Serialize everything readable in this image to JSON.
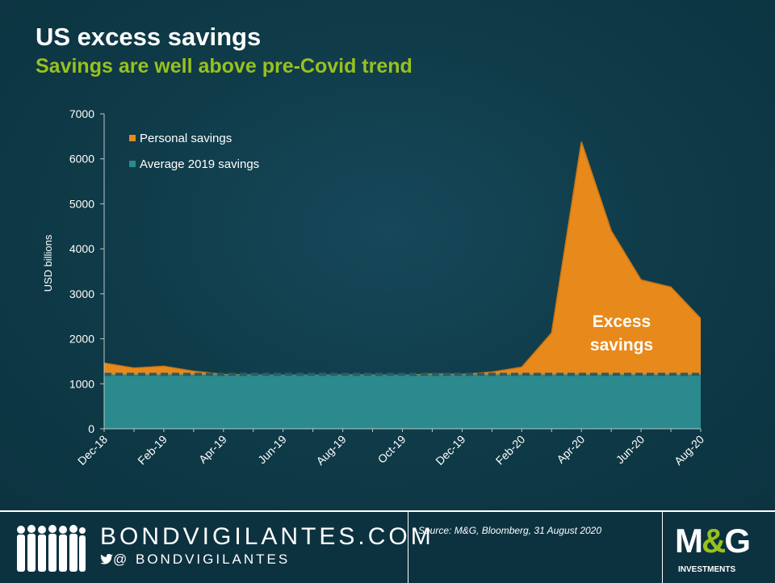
{
  "header": {
    "title": "US excess savings",
    "subtitle": "Savings are well above pre-Covid trend"
  },
  "footer": {
    "site": "BONDVIGILANTES.COM",
    "twitter": "@ BONDVIGILANTES",
    "source": "Source: M&G, Bloomberg, 31 August 2020",
    "logo_main_left": "M",
    "logo_amp": "&",
    "logo_main_right": "G",
    "logo_sub": "INVESTMENTS"
  },
  "colors": {
    "personal": "#e8891c",
    "average": "#2a8a8e",
    "average_line": "#2a5d66",
    "subtitle": "#98c11e"
  },
  "chart_data": {
    "type": "area",
    "ylabel": "USD billions",
    "ylim": [
      0,
      7000
    ],
    "yticks": [
      0,
      1000,
      2000,
      3000,
      4000,
      5000,
      6000,
      7000
    ],
    "x": [
      "Dec-18",
      "Jan-19",
      "Feb-19",
      "Mar-19",
      "Apr-19",
      "May-19",
      "Jun-19",
      "Jul-19",
      "Aug-19",
      "Sep-19",
      "Oct-19",
      "Nov-19",
      "Dec-19",
      "Jan-20",
      "Feb-20",
      "Mar-20",
      "Apr-20",
      "May-20",
      "Jun-20",
      "Jul-20",
      "Aug-20"
    ],
    "xtick_labels": [
      "Dec-18",
      "Feb-19",
      "Apr-19",
      "Jun-19",
      "Aug-19",
      "Oct-19",
      "Dec-19",
      "Feb-20",
      "Apr-20",
      "Jun-20",
      "Aug-20"
    ],
    "series": [
      {
        "name": "Personal savings",
        "values": [
          1460,
          1350,
          1390,
          1280,
          1210,
          1200,
          1190,
          1190,
          1200,
          1200,
          1190,
          1220,
          1210,
          1260,
          1370,
          2130,
          6380,
          4400,
          3310,
          3150,
          2450
        ]
      },
      {
        "name": "Average 2019 savings",
        "values": [
          1210,
          1210,
          1210,
          1210,
          1210,
          1210,
          1210,
          1210,
          1210,
          1210,
          1210,
          1210,
          1210,
          1210,
          1210,
          1210,
          1210,
          1210,
          1210,
          1210,
          1210
        ]
      }
    ],
    "annotation": {
      "line1": "Excess",
      "line2": "savings"
    },
    "legend_position": "top-left",
    "grid": false
  }
}
